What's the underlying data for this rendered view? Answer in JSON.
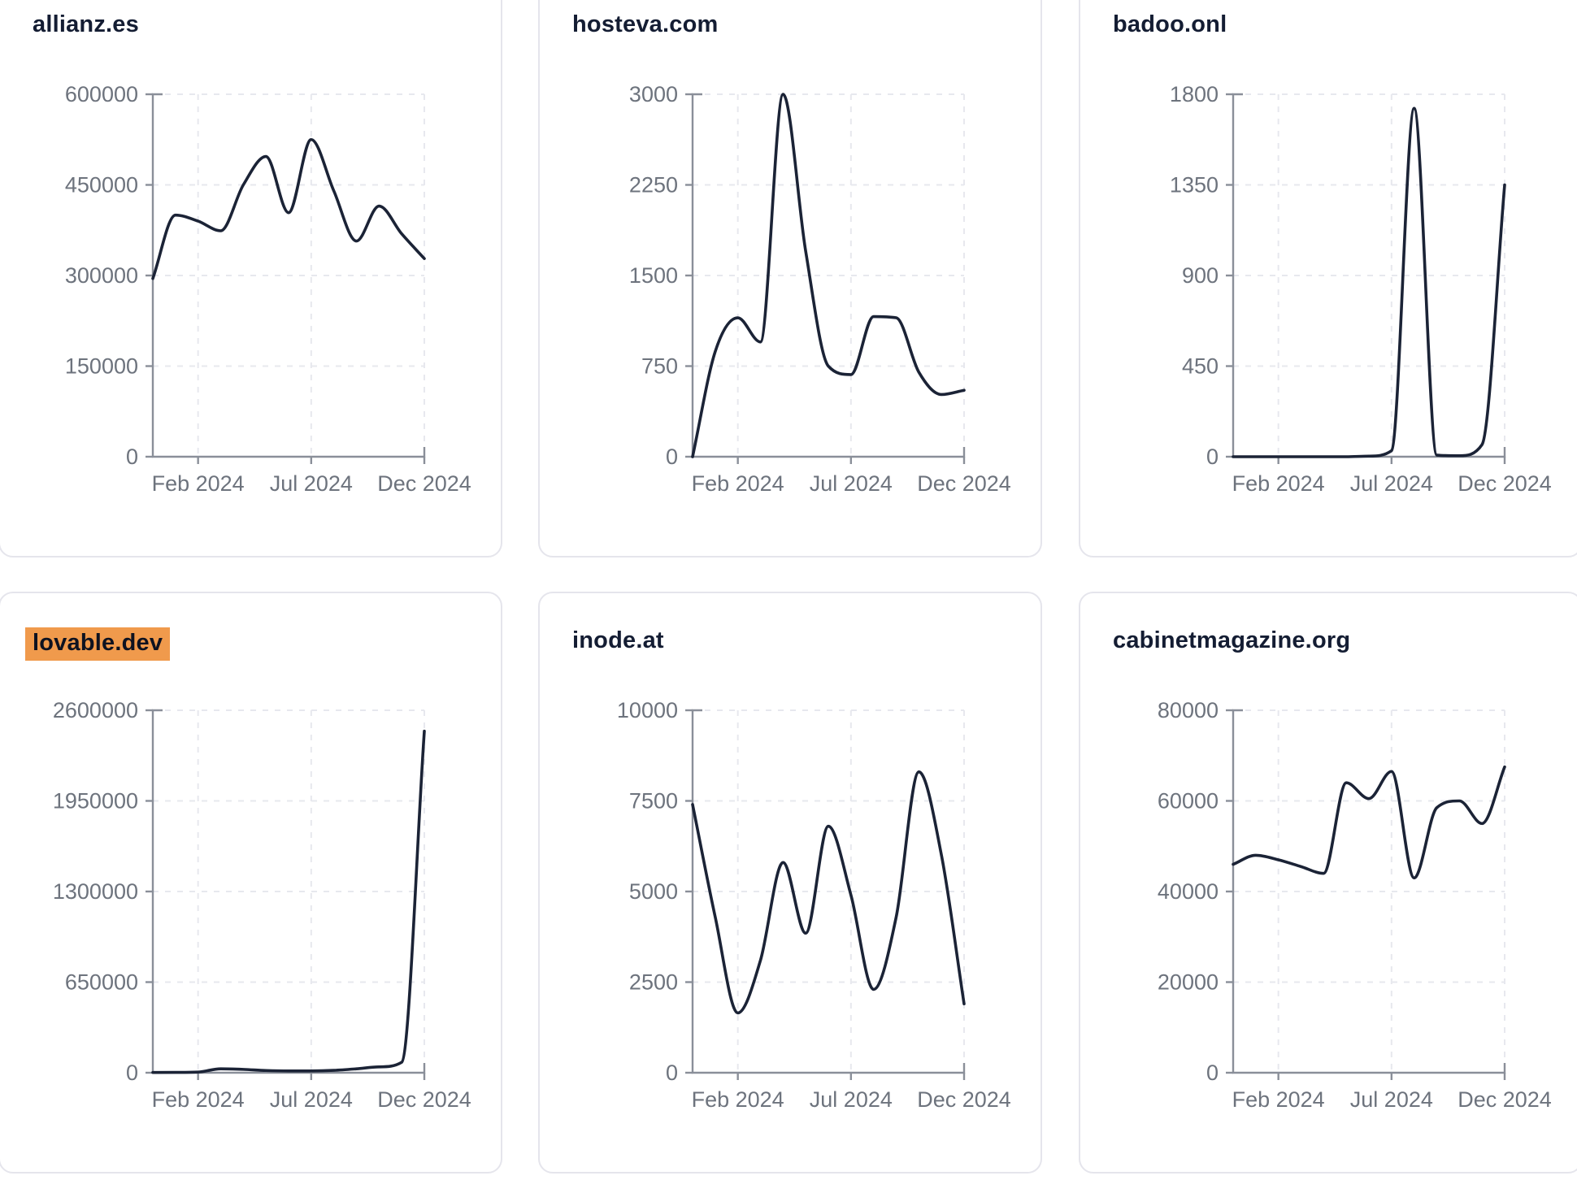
{
  "style": {
    "page_background": "#ffffff",
    "card_background": "#ffffff",
    "card_border_color": "#e5e5ec",
    "line_color": "#1b2336",
    "grid_color": "#e7e8ee",
    "axis_color": "#8a8f99",
    "tick_label_color": "#6d737d",
    "title_color": "#141d33",
    "highlight_color": "#f09a4c"
  },
  "chart_data": [
    {
      "type": "line",
      "title": "allianz.es",
      "highlighted": false,
      "x": [
        "Dec 2023",
        "Jan 2024",
        "Feb 2024",
        "Mar 2024",
        "Apr 2024",
        "May 2024",
        "Jun 2024",
        "Jul 2024",
        "Aug 2024",
        "Sep 2024",
        "Oct 2024",
        "Nov 2024",
        "Dec 2024"
      ],
      "values": [
        295000,
        400000,
        390000,
        374000,
        450000,
        497000,
        404000,
        525000,
        440000,
        357000,
        415000,
        369000,
        328000
      ],
      "ylim": [
        0,
        600000
      ],
      "y_ticks": [
        0,
        150000,
        300000,
        450000,
        600000
      ],
      "x_tick_labels": [
        "Feb 2024",
        "Jul 2024",
        "Dec 2024"
      ],
      "x_tick_months": [
        2,
        7,
        12
      ],
      "grid": true
    },
    {
      "type": "line",
      "title": "hosteva.com",
      "highlighted": false,
      "x": [
        "Dec 2023",
        "Jan 2024",
        "Feb 2024",
        "Mar 2024",
        "Apr 2024",
        "May 2024",
        "Jun 2024",
        "Jul 2024",
        "Aug 2024",
        "Sep 2024",
        "Oct 2024",
        "Nov 2024",
        "Dec 2024"
      ],
      "values": [
        0,
        870,
        1150,
        950,
        3000,
        1700,
        750,
        680,
        1160,
        1150,
        700,
        515,
        550
      ],
      "ylim": [
        0,
        3000
      ],
      "y_ticks": [
        0,
        750,
        1500,
        2250,
        3000
      ],
      "x_tick_labels": [
        "Feb 2024",
        "Jul 2024",
        "Dec 2024"
      ],
      "x_tick_months": [
        2,
        7,
        12
      ],
      "grid": true
    },
    {
      "type": "line",
      "title": "badoo.onl",
      "highlighted": false,
      "x": [
        "Dec 2023",
        "Jan 2024",
        "Feb 2024",
        "Mar 2024",
        "Apr 2024",
        "May 2024",
        "Jun 2024",
        "Jul 2024",
        "Aug 2024",
        "Sep 2024",
        "Oct 2024",
        "Nov 2024",
        "Dec 2024"
      ],
      "values": [
        0,
        0,
        0,
        0,
        0,
        0,
        3,
        30,
        1730,
        8,
        5,
        60,
        1350
      ],
      "ylim": [
        0,
        1800
      ],
      "y_ticks": [
        0,
        450,
        900,
        1350,
        1800
      ],
      "x_tick_labels": [
        "Feb 2024",
        "Jul 2024",
        "Dec 2024"
      ],
      "x_tick_months": [
        2,
        7,
        12
      ],
      "grid": true
    },
    {
      "type": "line",
      "title": "lovable.dev",
      "highlighted": true,
      "x": [
        "Dec 2023",
        "Jan 2024",
        "Feb 2024",
        "Mar 2024",
        "Apr 2024",
        "May 2024",
        "Jun 2024",
        "Jul 2024",
        "Aug 2024",
        "Sep 2024",
        "Oct 2024",
        "Nov 2024",
        "Dec 2024"
      ],
      "values": [
        2000,
        2500,
        5000,
        28000,
        24000,
        16000,
        13000,
        13000,
        17000,
        28000,
        42000,
        75000,
        2450000
      ],
      "ylim": [
        0,
        2600000
      ],
      "y_ticks": [
        0,
        650000,
        1300000,
        1950000,
        2600000
      ],
      "x_tick_labels": [
        "Feb 2024",
        "Jul 2024",
        "Dec 2024"
      ],
      "x_tick_months": [
        2,
        7,
        12
      ],
      "grid": true
    },
    {
      "type": "line",
      "title": "inode.at",
      "highlighted": false,
      "x": [
        "Dec 2023",
        "Jan 2024",
        "Feb 2024",
        "Mar 2024",
        "Apr 2024",
        "May 2024",
        "Jun 2024",
        "Jul 2024",
        "Aug 2024",
        "Sep 2024",
        "Oct 2024",
        "Nov 2024",
        "Dec 2024"
      ],
      "values": [
        7400,
        4300,
        1650,
        3100,
        5800,
        3850,
        6800,
        4900,
        2300,
        4300,
        8300,
        6000,
        1900
      ],
      "ylim": [
        0,
        10000
      ],
      "y_ticks": [
        0,
        2500,
        5000,
        7500,
        10000
      ],
      "x_tick_labels": [
        "Feb 2024",
        "Jul 2024",
        "Dec 2024"
      ],
      "x_tick_months": [
        2,
        7,
        12
      ],
      "grid": true
    },
    {
      "type": "line",
      "title": "cabinetmagazine.org",
      "highlighted": false,
      "x": [
        "Dec 2023",
        "Jan 2024",
        "Feb 2024",
        "Mar 2024",
        "Apr 2024",
        "May 2024",
        "Jun 2024",
        "Jul 2024",
        "Aug 2024",
        "Sep 2024",
        "Oct 2024",
        "Nov 2024",
        "Dec 2024"
      ],
      "values": [
        46000,
        48000,
        47000,
        45500,
        44000,
        64000,
        60500,
        66500,
        43000,
        58500,
        60000,
        55000,
        67500
      ],
      "ylim": [
        0,
        80000
      ],
      "y_ticks": [
        0,
        20000,
        40000,
        60000,
        80000
      ],
      "x_tick_labels": [
        "Feb 2024",
        "Jul 2024",
        "Dec 2024"
      ],
      "x_tick_months": [
        2,
        7,
        12
      ],
      "grid": true
    }
  ]
}
